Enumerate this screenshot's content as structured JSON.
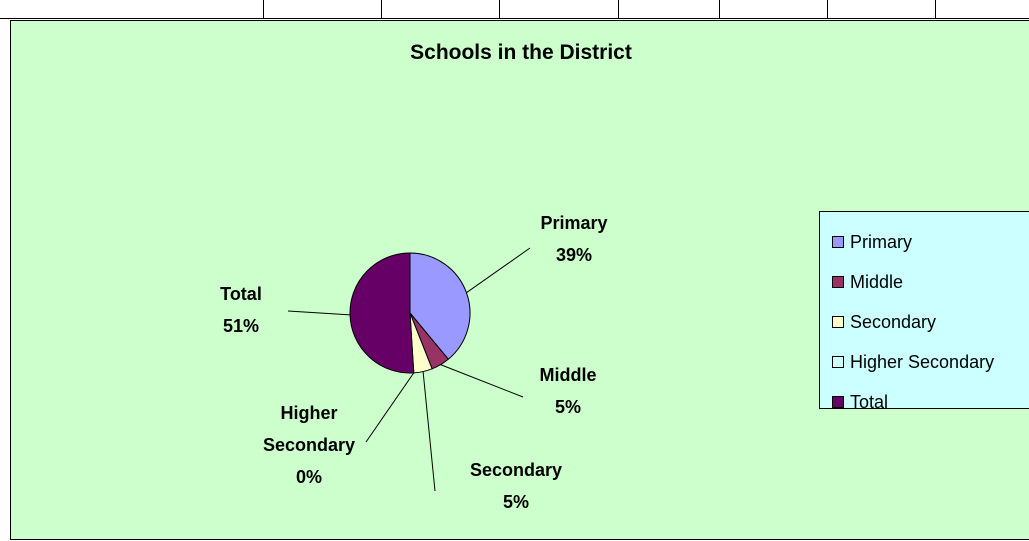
{
  "chart_data": {
    "type": "pie",
    "title": "Schools in the District",
    "categories": [
      "Primary",
      "Middle",
      "Secondary",
      "Higher Secondary",
      "Total"
    ],
    "values": [
      39,
      5,
      5,
      0,
      51
    ],
    "value_labels": [
      "39%",
      "5%",
      "5%",
      "0%",
      "51%"
    ],
    "colors": [
      "#9999ff",
      "#993366",
      "#ffffcc",
      "#ccffff",
      "#660066"
    ],
    "legend_position": "right",
    "legend": [
      "Primary",
      "Middle",
      "Secondary",
      "Higher Secondary",
      "Total"
    ]
  }
}
